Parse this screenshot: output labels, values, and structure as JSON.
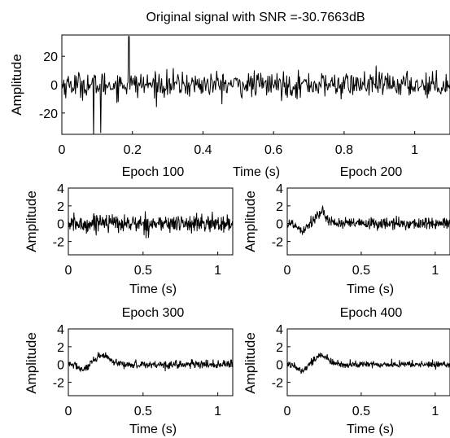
{
  "chart_data": [
    {
      "type": "line",
      "title": "Original signal with SNR =-30.7663dB",
      "xlabel": "Time (s)",
      "ylabel": "Amplitude",
      "xlim": [
        0,
        1.1
      ],
      "ylim": [
        -35,
        35
      ],
      "xticks": [
        "0",
        "0.2",
        "0.4",
        "0.6",
        "0.8",
        "1"
      ],
      "yticks": [
        "20",
        "0",
        "-20"
      ],
      "noise_amplitude": 10,
      "spikes": [
        {
          "x": 0.19,
          "y": 34
        },
        {
          "x": 0.09,
          "y": -37
        },
        {
          "x": 0.11,
          "y": -34
        }
      ],
      "grid": false,
      "series": [
        {
          "values_description": "",
          "points": 600
        }
      ]
    },
    {
      "type": "line",
      "title": "Epoch 100",
      "xlabel": "Time (s)",
      "ylabel": "Amplitude",
      "xlim": [
        0,
        1.1
      ],
      "ylim": [
        -3.5,
        4
      ],
      "xticks": [
        "0",
        "0.5",
        "1"
      ],
      "yticks": [
        "4",
        "2",
        "0",
        "-2"
      ],
      "noise_amplitude": 1.1,
      "erp_peak": 0.3,
      "grid": false
    },
    {
      "type": "line",
      "title": "Epoch 200",
      "xlabel": "Time (s)",
      "ylabel": "Amplitude",
      "xlim": [
        0,
        1.1
      ],
      "ylim": [
        -3.5,
        4
      ],
      "xticks": [
        "0",
        "0.5",
        "1"
      ],
      "yticks": [
        "4",
        "2",
        "0",
        "-2"
      ],
      "noise_amplitude": 0.75,
      "erp_peak": 1.1,
      "grid": false
    },
    {
      "type": "line",
      "title": "Epoch 300",
      "xlabel": "Time (s)",
      "ylabel": "Amplitude",
      "xlim": [
        0,
        1.1
      ],
      "ylim": [
        -3.5,
        4
      ],
      "xticks": [
        "0",
        "0.5",
        "1"
      ],
      "yticks": [
        "4",
        "2",
        "0",
        "-2"
      ],
      "noise_amplitude": 0.5,
      "erp_peak": 1.0,
      "grid": false
    },
    {
      "type": "line",
      "title": "Epoch 400",
      "xlabel": "Time (s)",
      "ylabel": "Amplitude",
      "xlim": [
        0,
        1.1
      ],
      "ylim": [
        -3.5,
        4
      ],
      "xticks": [
        "0",
        "0.5",
        "1"
      ],
      "yticks": [
        "4",
        "2",
        "0",
        "-2"
      ],
      "noise_amplitude": 0.45,
      "erp_peak": 1.0,
      "grid": false
    }
  ],
  "colors": {
    "line": "#000000",
    "background": "#ffffff",
    "axes": "#000000"
  }
}
